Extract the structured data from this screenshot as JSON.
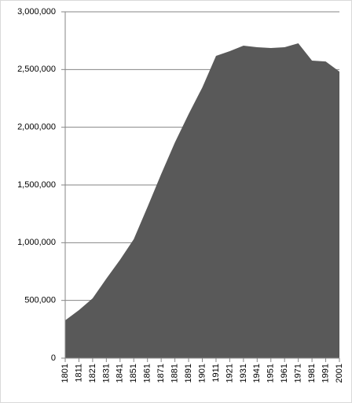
{
  "chart_data": {
    "type": "area",
    "categories": [
      "1801",
      "1811",
      "1821",
      "1831",
      "1841",
      "1851",
      "1861",
      "1871",
      "1881",
      "1891",
      "1901",
      "1911",
      "1921",
      "1931",
      "1941",
      "1951",
      "1961",
      "1971",
      "1981",
      "1991",
      "2001"
    ],
    "values": [
      327000,
      416000,
      518000,
      689000,
      852000,
      1030000,
      1309000,
      1595000,
      1868000,
      2114000,
      2345000,
      2618000,
      2659000,
      2707000,
      2693000,
      2686000,
      2693000,
      2727000,
      2577000,
      2570000,
      2482000
    ],
    "color": "#595959",
    "ylim": [
      0,
      3000000
    ],
    "yticks": [
      0,
      {
        "value": 500000,
        "label": "500,000"
      },
      {
        "value": 1000000,
        "label": "1,000,000"
      },
      {
        "value": 1500000,
        "label": "1,500,000"
      },
      {
        "value": 2000000,
        "label": "2,000,000"
      },
      {
        "value": 2500000,
        "label": "2,500,000"
      },
      {
        "value": 3000000,
        "label": "3,000,000"
      }
    ],
    "grid": true
  }
}
